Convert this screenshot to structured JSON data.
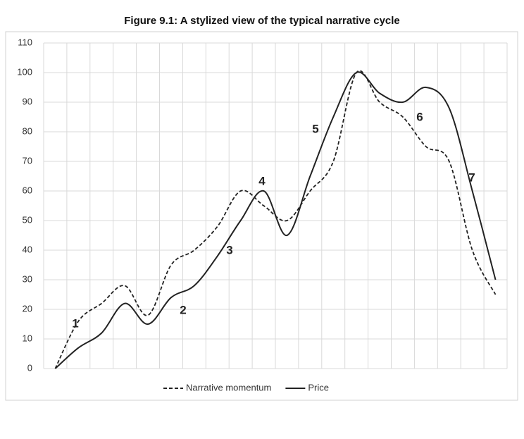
{
  "chart_data": {
    "type": "line",
    "title": "Figure 9.1: A stylized view of the typical narrative cycle",
    "categories": [
      null,
      null,
      null,
      null,
      null,
      null,
      null,
      null,
      null,
      null,
      null,
      null,
      null,
      null,
      null,
      null,
      null,
      null,
      null,
      null
    ],
    "series": [
      {
        "name": "Narrative momentum",
        "color": "#222222",
        "line_style": "dashed",
        "values": [
          0,
          16,
          22,
          28,
          18,
          35,
          40,
          48,
          60,
          55,
          50,
          60,
          70,
          100,
          90,
          85,
          75,
          70,
          40,
          25
        ]
      },
      {
        "name": "Price",
        "color": "#222222",
        "line_style": "solid",
        "values": [
          0,
          7,
          12,
          22,
          15,
          24,
          28,
          38,
          50,
          60,
          45,
          65,
          85,
          100,
          93,
          90,
          95,
          88,
          60,
          30
        ]
      }
    ],
    "ylim": [
      0,
      110
    ],
    "yticks": [
      0,
      10,
      20,
      30,
      40,
      50,
      60,
      70,
      80,
      90,
      100,
      110
    ],
    "grid": true,
    "legend": "bottom",
    "annotations": [
      "1",
      "2",
      "3",
      "4",
      "5",
      "6",
      "7"
    ]
  }
}
